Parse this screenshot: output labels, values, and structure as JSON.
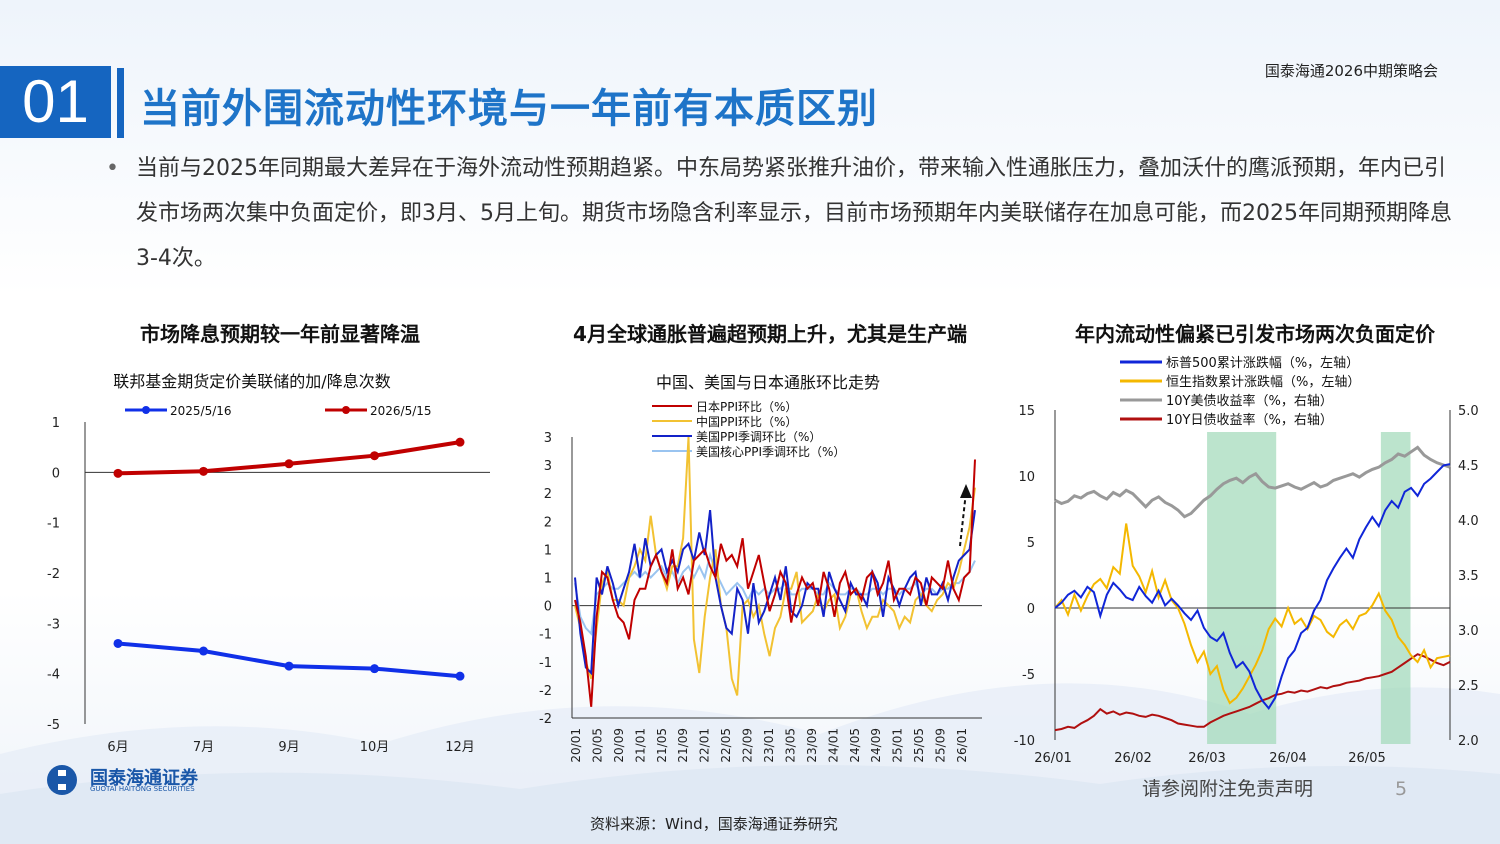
{
  "header": {
    "section_number": "01",
    "title": "当前外围流动性环境与一年前有本质区别",
    "corner_label": "国泰海通2026中期策略会"
  },
  "bullet": {
    "symbol": "•",
    "text": "当前与2025年同期最大差异在于海外流动性预期趋紧。中东局势紧张推升油价，带来输入性通胀压力，叠加沃什的鹰派预期，年内已引发市场两次集中负面定价，即3月、5月上旬。期货市场隐含利率显示，目前市场预期年内美联储存在加息可能，而2025年同期预期降息3-4次。"
  },
  "footer": {
    "source": "资料来源：Wind，国泰海通证券研究",
    "disclaimer": "请参阅附注免责声明",
    "page_number": "5",
    "logo_name": "国泰海通证券",
    "logo_sub": "GUOTAI HAITONG SECURITIES"
  },
  "chart_data": [
    {
      "type": "line",
      "heading": "市场降息预期较一年前显著降温",
      "title": "联邦基金期货定价美联储的加/降息次数",
      "categories": [
        "6月",
        "7月",
        "9月",
        "10月",
        "12月"
      ],
      "yticks": [
        "1",
        "0",
        "-1",
        "-2",
        "-3",
        "-4",
        "-5"
      ],
      "ylim": [
        -5,
        1
      ],
      "series": [
        {
          "name": "2025/5/16",
          "color": "#1030e8",
          "values": [
            -3.4,
            -3.55,
            -3.85,
            -3.9,
            -4.05
          ]
        },
        {
          "name": "2026/5/15",
          "color": "#c00000",
          "values": [
            -0.02,
            0.02,
            0.17,
            0.33,
            0.6
          ]
        }
      ],
      "legend": "top"
    },
    {
      "type": "line",
      "heading": "4月全球通胀普遍超预期上升，尤其是生产端",
      "title": "中国、美国与日本通胀环比走势",
      "xticks": [
        "20/01",
        "20/05",
        "20/09",
        "21/01",
        "21/05",
        "21/09",
        "22/01",
        "22/05",
        "22/09",
        "23/01",
        "23/05",
        "23/09",
        "24/01",
        "24/05",
        "24/09",
        "25/01",
        "25/05",
        "25/09",
        "26/01"
      ],
      "yticks": [
        "3",
        "3",
        "2",
        "2",
        "1",
        "1",
        "0",
        "-1",
        "-1",
        "-2",
        "-2"
      ],
      "ylim": [
        -2,
        3
      ],
      "series": [
        {
          "name": "日本PPI环比（%）",
          "color": "#c00000",
          "values": [
            0.1,
            -0.3,
            -0.9,
            -1.8,
            -0.2,
            0.6,
            0.5,
            0.1,
            -0.2,
            -0.3,
            -0.6,
            0.1,
            0.3,
            0.3,
            0.7,
            0.9,
            0.6,
            0.4,
            1.0,
            0.3,
            0.5,
            0.2,
            0.8,
            0.9,
            1.0,
            0.7,
            0.5,
            1.1,
            0.8,
            0.9,
            0.7,
            1.2,
            0.3,
            0.6,
            0.9,
            0.4,
            -0.1,
            0.2,
            0.6,
            0.4,
            -0.3,
            0.2,
            0.5,
            0.3,
            0.4,
            0.0,
            0.6,
            0.3,
            -0.2,
            0.4,
            0.6,
            0.2,
            0.3,
            0.1,
            0.5,
            0.6,
            0.2,
            0.4,
            0.8,
            0.1,
            0.3,
            0.3,
            0.2,
            0.5,
            0.4,
            0.0,
            0.5,
            0.4,
            0.3,
            0.8,
            0.3,
            0.1,
            0.5,
            0.6,
            2.6
          ]
        },
        {
          "name": "中国PPI环比（%）",
          "color": "#f2c232",
          "values": [
            0.0,
            -0.4,
            -1.0,
            -1.3,
            -0.4,
            0.4,
            0.6,
            0.1,
            0.1,
            0.0,
            0.5,
            0.7,
            1.0,
            0.8,
            1.6,
            0.9,
            0.6,
            0.3,
            0.7,
            0.7,
            1.2,
            3.0,
            -0.6,
            -1.2,
            -0.2,
            0.5,
            1.0,
            0.0,
            -0.4,
            -1.3,
            -1.6,
            0.0,
            0.1,
            -0.2,
            0.0,
            -0.5,
            -0.9,
            -0.4,
            -0.2,
            0.3,
            0.3,
            0.6,
            -0.3,
            -0.2,
            -0.1,
            0.2,
            -0.1,
            0.1,
            0.2,
            -0.4,
            -0.2,
            0.2,
            0.3,
            -0.1,
            -0.4,
            -0.2,
            -0.2,
            0.1,
            0.0,
            -0.1,
            -0.4,
            -0.2,
            -0.3,
            0.1,
            0.2,
            0.0,
            -0.1,
            0.1,
            0.2,
            0.4,
            0.3,
            0.6,
            1.0,
            1.4,
            2.1
          ]
        },
        {
          "name": "美国PPI季调环比（%）",
          "color": "#1322c8",
          "values": [
            0.5,
            -0.5,
            -1.1,
            -1.2,
            0.5,
            0.2,
            0.7,
            0.4,
            0.0,
            0.3,
            0.6,
            1.1,
            0.5,
            1.2,
            0.7,
            0.9,
            1.0,
            0.6,
            0.8,
            0.6,
            1.0,
            1.1,
            0.8,
            1.3,
            0.9,
            1.7,
            0.5,
            0.0,
            -0.4,
            -0.5,
            0.3,
            0.1,
            -0.5,
            0.4,
            -0.3,
            -0.1,
            0.2,
            0.5,
            0.1,
            0.7,
            -0.1,
            -0.2,
            0.0,
            0.4,
            0.3,
            0.3,
            -0.2,
            0.6,
            0.3,
            0.1,
            -0.1,
            0.4,
            0.2,
            0.2,
            0.0,
            0.6,
            0.4,
            -0.2,
            0.5,
            0.3,
            0.0,
            0.3,
            0.5,
            0.6,
            0.0,
            0.5,
            0.2,
            0.2,
            0.4,
            0.1,
            0.5,
            0.8,
            0.9,
            1.0,
            1.7
          ]
        },
        {
          "name": "美国核心PPI季调环比（%）",
          "color": "#9ac4f0",
          "values": [
            0.4,
            -0.2,
            -0.4,
            -0.5,
            0.2,
            0.3,
            0.4,
            0.3,
            0.3,
            0.4,
            0.5,
            0.6,
            0.5,
            0.6,
            0.5,
            0.6,
            0.7,
            0.5,
            0.6,
            0.4,
            0.6,
            0.7,
            0.5,
            0.7,
            0.5,
            0.9,
            0.6,
            0.4,
            0.2,
            0.3,
            0.4,
            0.3,
            0.1,
            0.3,
            0.2,
            0.3,
            0.2,
            0.3,
            0.3,
            0.4,
            0.2,
            0.2,
            0.3,
            0.3,
            0.3,
            0.2,
            0.2,
            0.4,
            0.3,
            0.2,
            0.2,
            0.3,
            0.3,
            0.2,
            0.2,
            0.3,
            0.3,
            0.2,
            0.3,
            0.3,
            0.2,
            0.3,
            0.3,
            0.4,
            0.2,
            0.3,
            0.3,
            0.2,
            0.3,
            0.3,
            0.4,
            0.4,
            0.5,
            0.6,
            0.8
          ]
        }
      ],
      "annotation": "dashed arrow pointing up at latest values"
    },
    {
      "type": "line",
      "heading": "年内流动性偏紧已引发市场两次负面定价",
      "xticks": [
        "26/01",
        "26/02",
        "26/03",
        "26/04",
        "26/05"
      ],
      "yticks_left": [
        "15",
        "10",
        "5",
        "0",
        "-5",
        "-10"
      ],
      "yticks_right": [
        "5.0",
        "4.5",
        "4.0",
        "3.5",
        "3.0",
        "2.5",
        "2.0"
      ],
      "ylim_left": [
        -10,
        15
      ],
      "ylim_right": [
        2.0,
        5.0
      ],
      "shaded_periods": [
        [
          "26/03 early",
          "26/03 late"
        ],
        [
          "26/05 early",
          "26/05 mid"
        ]
      ],
      "series": [
        {
          "name": "标普500累计涨跌幅（%，左轴）",
          "color": "#1026d8",
          "axis": "left",
          "values": [
            0.0,
            0.4,
            1.0,
            1.3,
            0.8,
            1.6,
            1.2,
            -0.6,
            1.0,
            1.9,
            1.4,
            0.8,
            0.6,
            1.6,
            0.9,
            0.4,
            1.3,
            0.2,
            0.7,
            0.2,
            -0.4,
            -0.9,
            -0.2,
            -1.5,
            -2.2,
            -2.5,
            -1.9,
            -3.4,
            -4.5,
            -4.1,
            -4.8,
            -6.1,
            -7.0,
            -7.6,
            -6.8,
            -5.2,
            -3.8,
            -3.2,
            -1.9,
            -1.5,
            -0.2,
            0.6,
            2.1,
            3.0,
            3.8,
            4.5,
            3.8,
            5.2,
            6.1,
            6.9,
            6.2,
            7.4,
            8.1,
            7.6,
            8.8,
            9.1,
            8.5,
            9.4,
            9.8,
            10.3,
            10.8,
            10.9
          ]
        },
        {
          "name": "恒生指数累计涨跌幅（%，左轴）",
          "color": "#f4b800",
          "axis": "left",
          "values": [
            0.0,
            0.6,
            -0.5,
            1.0,
            -0.2,
            0.9,
            1.8,
            2.2,
            1.5,
            3.1,
            2.6,
            6.4,
            3.2,
            2.4,
            1.2,
            2.8,
            0.8,
            2.1,
            0.6,
            0.0,
            -1.2,
            -2.8,
            -4.1,
            -3.3,
            -5.0,
            -4.4,
            -6.2,
            -7.2,
            -6.8,
            -6.1,
            -5.2,
            -4.3,
            -3.2,
            -1.6,
            -0.8,
            -1.4,
            0.0,
            -1.2,
            -0.8,
            -1.6,
            -0.6,
            -0.9,
            -1.8,
            -2.2,
            -1.3,
            -0.9,
            -1.6,
            -0.6,
            -0.4,
            0.2,
            1.1,
            -0.2,
            -0.9,
            -2.2,
            -2.8,
            -3.6,
            -4.1,
            -3.2,
            -4.5,
            -3.8,
            -3.7,
            -3.6
          ]
        },
        {
          "name": "10Y美债收益率（%，右轴）",
          "color": "#999999",
          "axis": "right",
          "values": [
            4.18,
            4.15,
            4.17,
            4.22,
            4.2,
            4.24,
            4.26,
            4.22,
            4.19,
            4.25,
            4.22,
            4.27,
            4.24,
            4.18,
            4.12,
            4.18,
            4.21,
            4.16,
            4.13,
            4.09,
            4.03,
            4.06,
            4.12,
            4.18,
            4.22,
            4.28,
            4.33,
            4.36,
            4.38,
            4.34,
            4.39,
            4.42,
            4.35,
            4.3,
            4.29,
            4.31,
            4.33,
            4.3,
            4.28,
            4.31,
            4.34,
            4.3,
            4.32,
            4.36,
            4.38,
            4.4,
            4.42,
            4.39,
            4.43,
            4.46,
            4.48,
            4.52,
            4.55,
            4.6,
            4.58,
            4.62,
            4.66,
            4.59,
            4.55,
            4.52,
            4.5,
            4.48
          ]
        },
        {
          "name": "10Y日债收益率（%，右轴）",
          "color": "#b01010",
          "axis": "right",
          "values": [
            2.09,
            2.1,
            2.12,
            2.11,
            2.15,
            2.18,
            2.22,
            2.28,
            2.24,
            2.26,
            2.23,
            2.25,
            2.24,
            2.22,
            2.21,
            2.23,
            2.22,
            2.2,
            2.18,
            2.15,
            2.14,
            2.13,
            2.12,
            2.12,
            2.16,
            2.19,
            2.22,
            2.24,
            2.26,
            2.28,
            2.3,
            2.33,
            2.36,
            2.38,
            2.41,
            2.42,
            2.44,
            2.43,
            2.45,
            2.44,
            2.46,
            2.48,
            2.47,
            2.49,
            2.5,
            2.52,
            2.53,
            2.54,
            2.56,
            2.57,
            2.58,
            2.6,
            2.62,
            2.66,
            2.7,
            2.74,
            2.78,
            2.76,
            2.73,
            2.7,
            2.68,
            2.71
          ]
        }
      ],
      "legend": "top"
    }
  ]
}
